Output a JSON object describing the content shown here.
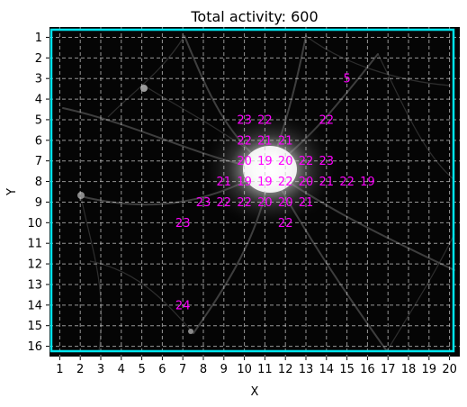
{
  "chart_data": {
    "type": "heatmap",
    "title": "Total activity: 600",
    "xlabel": "X",
    "ylabel": "Y",
    "x_ticks": [
      1,
      2,
      3,
      4,
      5,
      6,
      7,
      8,
      9,
      10,
      11,
      12,
      13,
      14,
      15,
      16,
      17,
      18,
      19,
      20
    ],
    "y_ticks": [
      1,
      2,
      3,
      4,
      5,
      6,
      7,
      8,
      9,
      10,
      11,
      12,
      13,
      14,
      15,
      16
    ],
    "xlim": [
      0.5,
      20.5
    ],
    "ylim": [
      0.5,
      16.5
    ],
    "y_inverted": true,
    "grid": true,
    "cells": [
      {
        "x": 15,
        "y": 3,
        "value": 5
      },
      {
        "x": 10,
        "y": 5,
        "value": 23
      },
      {
        "x": 11,
        "y": 5,
        "value": 22
      },
      {
        "x": 14,
        "y": 5,
        "value": 22
      },
      {
        "x": 10,
        "y": 6,
        "value": 22
      },
      {
        "x": 11,
        "y": 6,
        "value": 21
      },
      {
        "x": 12,
        "y": 6,
        "value": 21
      },
      {
        "x": 10,
        "y": 7,
        "value": 20
      },
      {
        "x": 11,
        "y": 7,
        "value": 19
      },
      {
        "x": 12,
        "y": 7,
        "value": 20
      },
      {
        "x": 13,
        "y": 7,
        "value": 22
      },
      {
        "x": 14,
        "y": 7,
        "value": 23
      },
      {
        "x": 9,
        "y": 8,
        "value": 21
      },
      {
        "x": 10,
        "y": 8,
        "value": 19
      },
      {
        "x": 11,
        "y": 8,
        "value": 19
      },
      {
        "x": 12,
        "y": 8,
        "value": 22
      },
      {
        "x": 13,
        "y": 8,
        "value": 20
      },
      {
        "x": 14,
        "y": 8,
        "value": 21
      },
      {
        "x": 15,
        "y": 8,
        "value": 22
      },
      {
        "x": 16,
        "y": 8,
        "value": 19
      },
      {
        "x": 8,
        "y": 9,
        "value": 23
      },
      {
        "x": 9,
        "y": 9,
        "value": 22
      },
      {
        "x": 10,
        "y": 9,
        "value": 22
      },
      {
        "x": 11,
        "y": 9,
        "value": 20
      },
      {
        "x": 12,
        "y": 9,
        "value": 20
      },
      {
        "x": 13,
        "y": 9,
        "value": 21
      },
      {
        "x": 7,
        "y": 10,
        "value": 23
      },
      {
        "x": 12,
        "y": 10,
        "value": 22
      },
      {
        "x": 7,
        "y": 14,
        "value": 24
      }
    ],
    "colors": {
      "label": "#ff00ff",
      "frame": "#00e5ee",
      "grid": "#c8c8c8",
      "background": "#050505"
    }
  }
}
